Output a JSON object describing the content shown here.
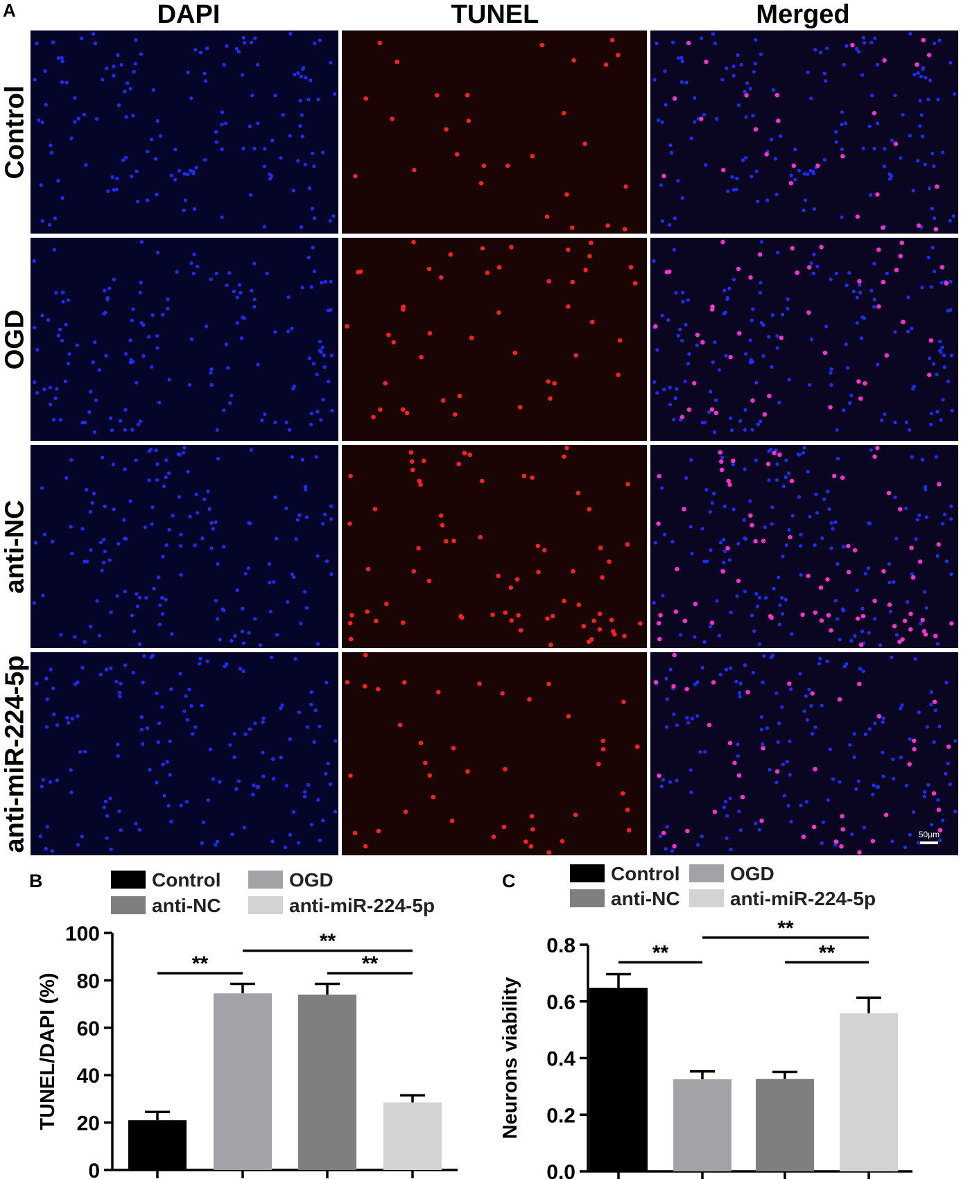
{
  "panel_a": {
    "letter": "A",
    "columns": [
      "DAPI",
      "TUNEL",
      "Merged"
    ],
    "rows": [
      "Control",
      "OGD",
      "anti-NC",
      "anti-miR-224-5p"
    ],
    "scale_bar": "50μm",
    "colors": {
      "dapi": "#1a2fff",
      "tunel": "#ff2020",
      "merged": "#ff30d0",
      "bg_dapi": "#05052a",
      "bg_tunel": "#1a0404",
      "bg_merged": "#0a0520"
    }
  },
  "chart_data": [
    {
      "panel": "B",
      "type": "bar",
      "categories": [
        "Control",
        "OGD",
        "anti-NC",
        "anti-miR-224-5p"
      ],
      "values": [
        21,
        74.5,
        74,
        28.5
      ],
      "errors": [
        3.5,
        4,
        4.5,
        3
      ],
      "colors": [
        "#000000",
        "#a2a3a7",
        "#7f7f7f",
        "#d3d3d3"
      ],
      "ylabel": "TUNEL/DAPI (%)",
      "ylim": [
        0,
        100
      ],
      "yticks": [
        0,
        20,
        40,
        60,
        80,
        100
      ],
      "legend": [
        "Control",
        "OGD",
        "anti-NC",
        "anti-miR-224-5p"
      ],
      "significance": [
        {
          "from": 0,
          "to": 1,
          "label": "**",
          "level": 83
        },
        {
          "from": 1,
          "to": 3,
          "label": "**",
          "level": 92.5
        },
        {
          "from": 2,
          "to": 3,
          "label": "**",
          "level": 83
        }
      ]
    },
    {
      "panel": "C",
      "type": "bar",
      "categories": [
        "Control",
        "OGD",
        "anti-NC",
        "anti-miR-224-5p"
      ],
      "values": [
        0.648,
        0.325,
        0.326,
        0.558
      ],
      "errors": [
        0.048,
        0.028,
        0.025,
        0.055
      ],
      "colors": [
        "#000000",
        "#a2a3a7",
        "#7f7f7f",
        "#d3d3d3"
      ],
      "ylabel": "Neurons viability",
      "ylim": [
        0,
        0.8
      ],
      "yticks": [
        "0.0",
        "0.2",
        "0.4",
        "0.6",
        "0.8"
      ],
      "legend": [
        "Control",
        "OGD",
        "anti-NC",
        "anti-miR-224-5p"
      ],
      "significance": [
        {
          "from": 0,
          "to": 1,
          "label": "**",
          "level": 0.738
        },
        {
          "from": 1,
          "to": 3,
          "label": "**",
          "level": 0.825
        },
        {
          "from": 2,
          "to": 3,
          "label": "**",
          "level": 0.738
        }
      ]
    }
  ]
}
